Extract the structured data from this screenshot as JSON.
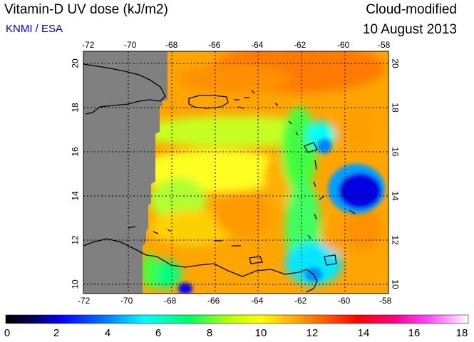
{
  "header": {
    "title": "Vitamin-D UV dose (kJ/m2)",
    "credit": "KNMI / ESA",
    "product": "Cloud-modified",
    "date": "10 August 2013"
  },
  "map": {
    "lon_ticks": [
      "-72",
      "-70",
      "-68",
      "-66",
      "-64",
      "-62",
      "-60",
      "-58"
    ],
    "lat_ticks": [
      "10",
      "12",
      "14",
      "16",
      "18",
      "20"
    ],
    "no_data_color": "#808080"
  },
  "colorbar": {
    "labels": [
      "0",
      "2",
      "4",
      "6",
      "8",
      "10",
      "12",
      "14",
      "16",
      "18"
    ],
    "range": [
      0,
      18
    ],
    "colors": [
      "#000000",
      "#0000ff",
      "#00ffff",
      "#00ff00",
      "#ffff00",
      "#ff8000",
      "#ff0000",
      "#ff00ff",
      "#ffffff"
    ]
  }
}
